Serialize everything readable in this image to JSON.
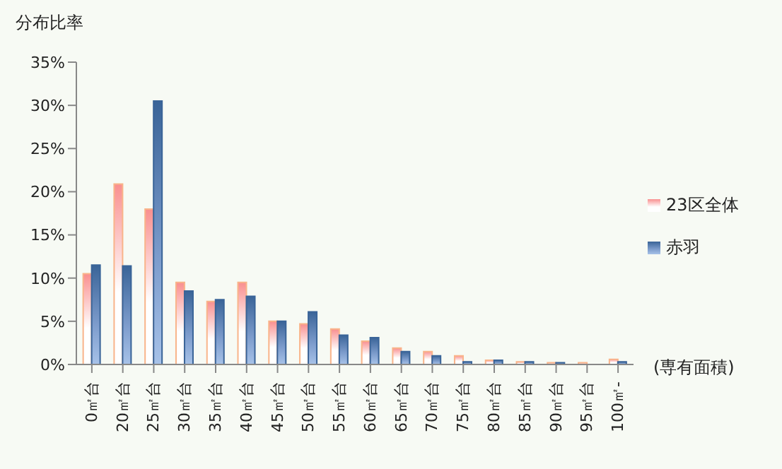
{
  "chart_data": {
    "type": "bar",
    "ylabel": "分布比率",
    "xlabel": "(専有面積)",
    "categories": [
      "0㎡台",
      "20㎡台",
      "25㎡台",
      "30㎡台",
      "35㎡台",
      "40㎡台",
      "45㎡台",
      "50㎡台",
      "55㎡台",
      "60㎡台",
      "65㎡台",
      "70㎡台",
      "75㎡台",
      "80㎡台",
      "85㎡台",
      "90㎡台",
      "95㎡台",
      "100㎡-"
    ],
    "series": [
      {
        "name": "23区全体",
        "color": "#f9b48a",
        "values": [
          10.5,
          20.9,
          18.0,
          9.5,
          7.3,
          9.5,
          5.0,
          4.7,
          4.1,
          2.7,
          1.9,
          1.5,
          1.0,
          0.5,
          0.3,
          0.2,
          0.2,
          0.6
        ]
      },
      {
        "name": "赤羽",
        "color": "#3a6498",
        "values": [
          11.5,
          11.4,
          30.5,
          8.5,
          7.5,
          7.9,
          5.0,
          6.1,
          3.4,
          3.1,
          1.5,
          1.0,
          0.3,
          0.5,
          0.3,
          0.2,
          0.0,
          0.3
        ]
      }
    ],
    "ylim": [
      0,
      35
    ],
    "yticks": [
      {
        "value": 0,
        "label": "0%"
      },
      {
        "value": 5,
        "label": "5%"
      },
      {
        "value": 10,
        "label": "10%"
      },
      {
        "value": 15,
        "label": "15%"
      },
      {
        "value": 20,
        "label": "20%"
      },
      {
        "value": 25,
        "label": "25%"
      },
      {
        "value": 30,
        "label": "30%"
      },
      {
        "value": 35,
        "label": "35%"
      }
    ],
    "grid": false,
    "legend": "right"
  }
}
